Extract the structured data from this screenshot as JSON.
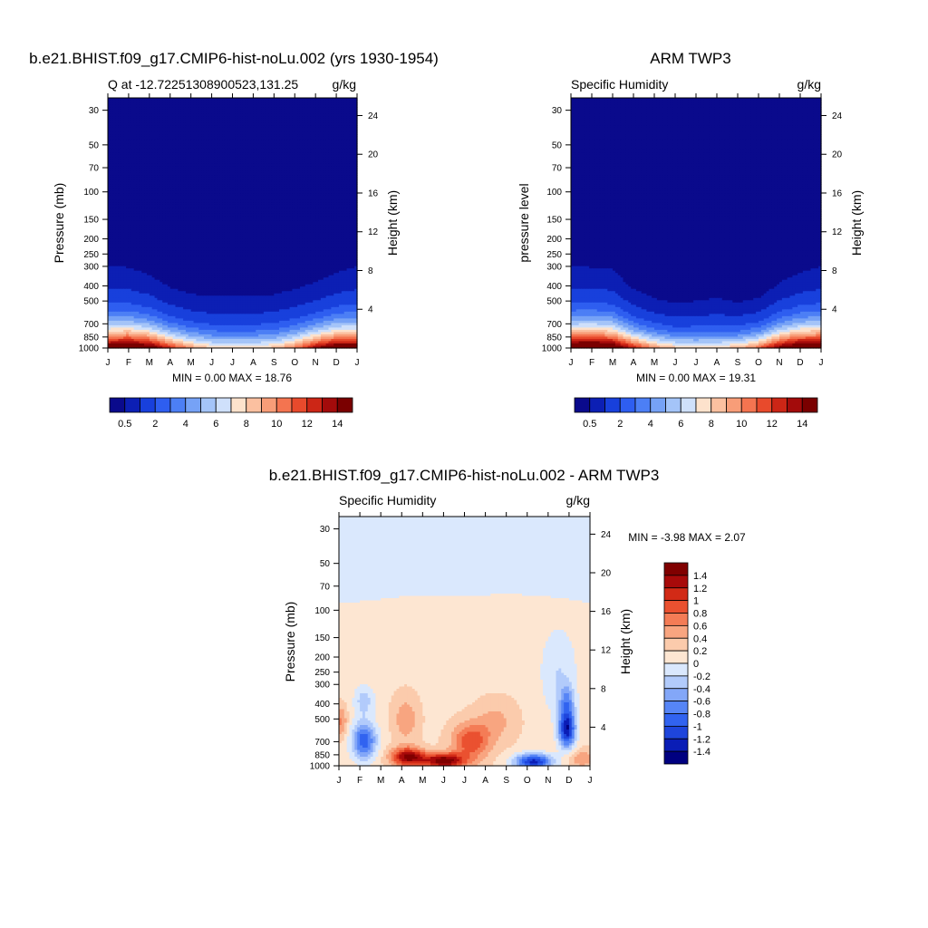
{
  "palette": {
    "qcolors": [
      "#0a0a8c",
      "#0c1fb4",
      "#1840dc",
      "#2e5ef0",
      "#4c7ff5",
      "#76a2f6",
      "#a4c4f8",
      "#cfe0fb",
      "#fde2cc",
      "#fbc0a0",
      "#f89d78",
      "#f47450",
      "#e84a2c",
      "#cc2616",
      "#a30b0b",
      "#7a0000"
    ],
    "dcolors": [
      "#000080",
      "#0a1db6",
      "#1e45dc",
      "#3163f0",
      "#5685f6",
      "#83a7f8",
      "#b2cbfb",
      "#dae8fd",
      "#fde6d2",
      "#fbcbac",
      "#f8a580",
      "#f47c56",
      "#ea5130",
      "#d22a16",
      "#a80a0a",
      "#800000"
    ]
  },
  "charts": [
    {
      "id": "model",
      "type": "heatmap",
      "title": "b.e21.BHIST.f09_g17.CMIP6-hist-noLu.002 (yrs 1930-1954)",
      "left_label": "Q at -12.72251308900523,131.25",
      "right_label": "g/kg",
      "ylabel": "Pressure (mb)",
      "ylabel_right": "Height (km)",
      "x": [
        "J",
        "F",
        "M",
        "A",
        "M",
        "J",
        "J",
        "A",
        "S",
        "O",
        "N",
        "D",
        "J"
      ],
      "p_ticks": [
        30,
        50,
        70,
        100,
        150,
        200,
        250,
        300,
        400,
        500,
        700,
        850,
        1000
      ],
      "ylim": [
        1000,
        25
      ],
      "height_ticks": [
        4,
        8,
        12,
        16,
        20,
        24
      ],
      "stats": "MIN =   0.00 MAX =  18.76",
      "colorbar_labels": [
        "0.5",
        "2",
        "4",
        "6",
        "8",
        "10",
        "12",
        "14"
      ],
      "data": {
        "surface_q": [
          16.5,
          17.5,
          16.0,
          12.5,
          9.8,
          8.2,
          7.8,
          8.0,
          8.6,
          10.5,
          14.0,
          16.5,
          16.5
        ],
        "moist_top_mb": [
          300,
          305,
          340,
          410,
          450,
          470,
          470,
          470,
          455,
          420,
          380,
          330,
          300
        ]
      }
    },
    {
      "id": "obs",
      "type": "heatmap",
      "title": "ARM TWP3",
      "left_label": "Specific Humidity",
      "right_label": "g/kg",
      "ylabel": "pressure level",
      "ylabel_right": "Height (km)",
      "x": [
        "J",
        "F",
        "M",
        "A",
        "M",
        "J",
        "J",
        "A",
        "S",
        "O",
        "N",
        "D",
        "J"
      ],
      "p_ticks": [
        30,
        50,
        70,
        100,
        150,
        200,
        250,
        300,
        400,
        500,
        700,
        850,
        1000
      ],
      "ylim": [
        1000,
        25
      ],
      "height_ticks": [
        4,
        8,
        12,
        16,
        20,
        24
      ],
      "stats": "MIN =   0.00 MAX =  19.31",
      "colorbar_labels": [
        "0.5",
        "2",
        "4",
        "6",
        "8",
        "10",
        "12",
        "14"
      ],
      "data": {
        "surface_q": [
          17.5,
          18.5,
          17.0,
          13.0,
          10.0,
          8.5,
          8.0,
          8.2,
          8.8,
          11.0,
          15.0,
          17.5,
          17.5
        ],
        "moist_top_mb": [
          300,
          305,
          310,
          420,
          480,
          520,
          500,
          480,
          510,
          480,
          380,
          330,
          300
        ]
      }
    },
    {
      "id": "diff",
      "type": "heatmap",
      "title": "b.e21.BHIST.f09_g17.CMIP6-hist-noLu.002 - ARM TWP3",
      "left_label": "Specific Humidity",
      "right_label": "g/kg",
      "ylabel": "Pressure (mb)",
      "ylabel_right": "Height (km)",
      "x": [
        "J",
        "F",
        "M",
        "A",
        "M",
        "J",
        "J",
        "A",
        "S",
        "O",
        "N",
        "D",
        "J"
      ],
      "p_ticks": [
        30,
        50,
        70,
        100,
        150,
        200,
        250,
        300,
        400,
        500,
        700,
        850,
        1000
      ],
      "ylim": [
        1000,
        25
      ],
      "height_ticks": [
        4,
        8,
        12,
        16,
        20,
        24
      ],
      "stats": "MIN =  -3.98 MAX =   2.07",
      "colorbar_labels": [
        "1.4",
        "1.2",
        "1",
        "0.8",
        "0.6",
        "0.4",
        "0.2",
        "0",
        "-0.2",
        "-0.4",
        "-0.6",
        "-0.8",
        "-1",
        "-1.2",
        "-1.4"
      ],
      "data": {
        "strat_value": -0.1,
        "upper_trop_value": 0.15,
        "upper_trop_top_mb": [
          90,
          88,
          85,
          82,
          80,
          80,
          82,
          80,
          78,
          80,
          82,
          85,
          90
        ],
        "features": [
          {
            "month": 1.2,
            "p": 690,
            "dm": 0.6,
            "dlp": 0.12,
            "amp": -1.1
          },
          {
            "month": 1.2,
            "p": 380,
            "dm": 0.5,
            "dlp": 0.1,
            "amp": -0.45
          },
          {
            "month": 0.1,
            "p": 520,
            "dm": 0.3,
            "dlp": 0.1,
            "amp": 0.5
          },
          {
            "month": 3.3,
            "p": 880,
            "dm": 0.8,
            "dlp": 0.06,
            "amp": 1.3
          },
          {
            "month": 5.0,
            "p": 930,
            "dm": 1.0,
            "dlp": 0.05,
            "amp": 1.4
          },
          {
            "month": 6.3,
            "p": 700,
            "dm": 0.9,
            "dlp": 0.12,
            "amp": 0.8
          },
          {
            "month": 3.2,
            "p": 500,
            "dm": 0.6,
            "dlp": 0.15,
            "amp": 0.4
          },
          {
            "month": 7.5,
            "p": 520,
            "dm": 1.0,
            "dlp": 0.14,
            "amp": 0.3
          },
          {
            "month": 9.3,
            "p": 940,
            "dm": 0.9,
            "dlp": 0.05,
            "amp": -1.4
          },
          {
            "month": 10.9,
            "p": 580,
            "dm": 0.4,
            "dlp": 0.12,
            "amp": -1.5
          },
          {
            "month": 10.9,
            "p": 380,
            "dm": 0.35,
            "dlp": 0.1,
            "amp": -0.6
          },
          {
            "month": 10.5,
            "p": 250,
            "dm": 0.9,
            "dlp": 0.3,
            "amp": -0.35
          },
          {
            "month": 11.6,
            "p": 900,
            "dm": 0.7,
            "dlp": 0.06,
            "amp": 0.4
          }
        ]
      }
    }
  ]
}
